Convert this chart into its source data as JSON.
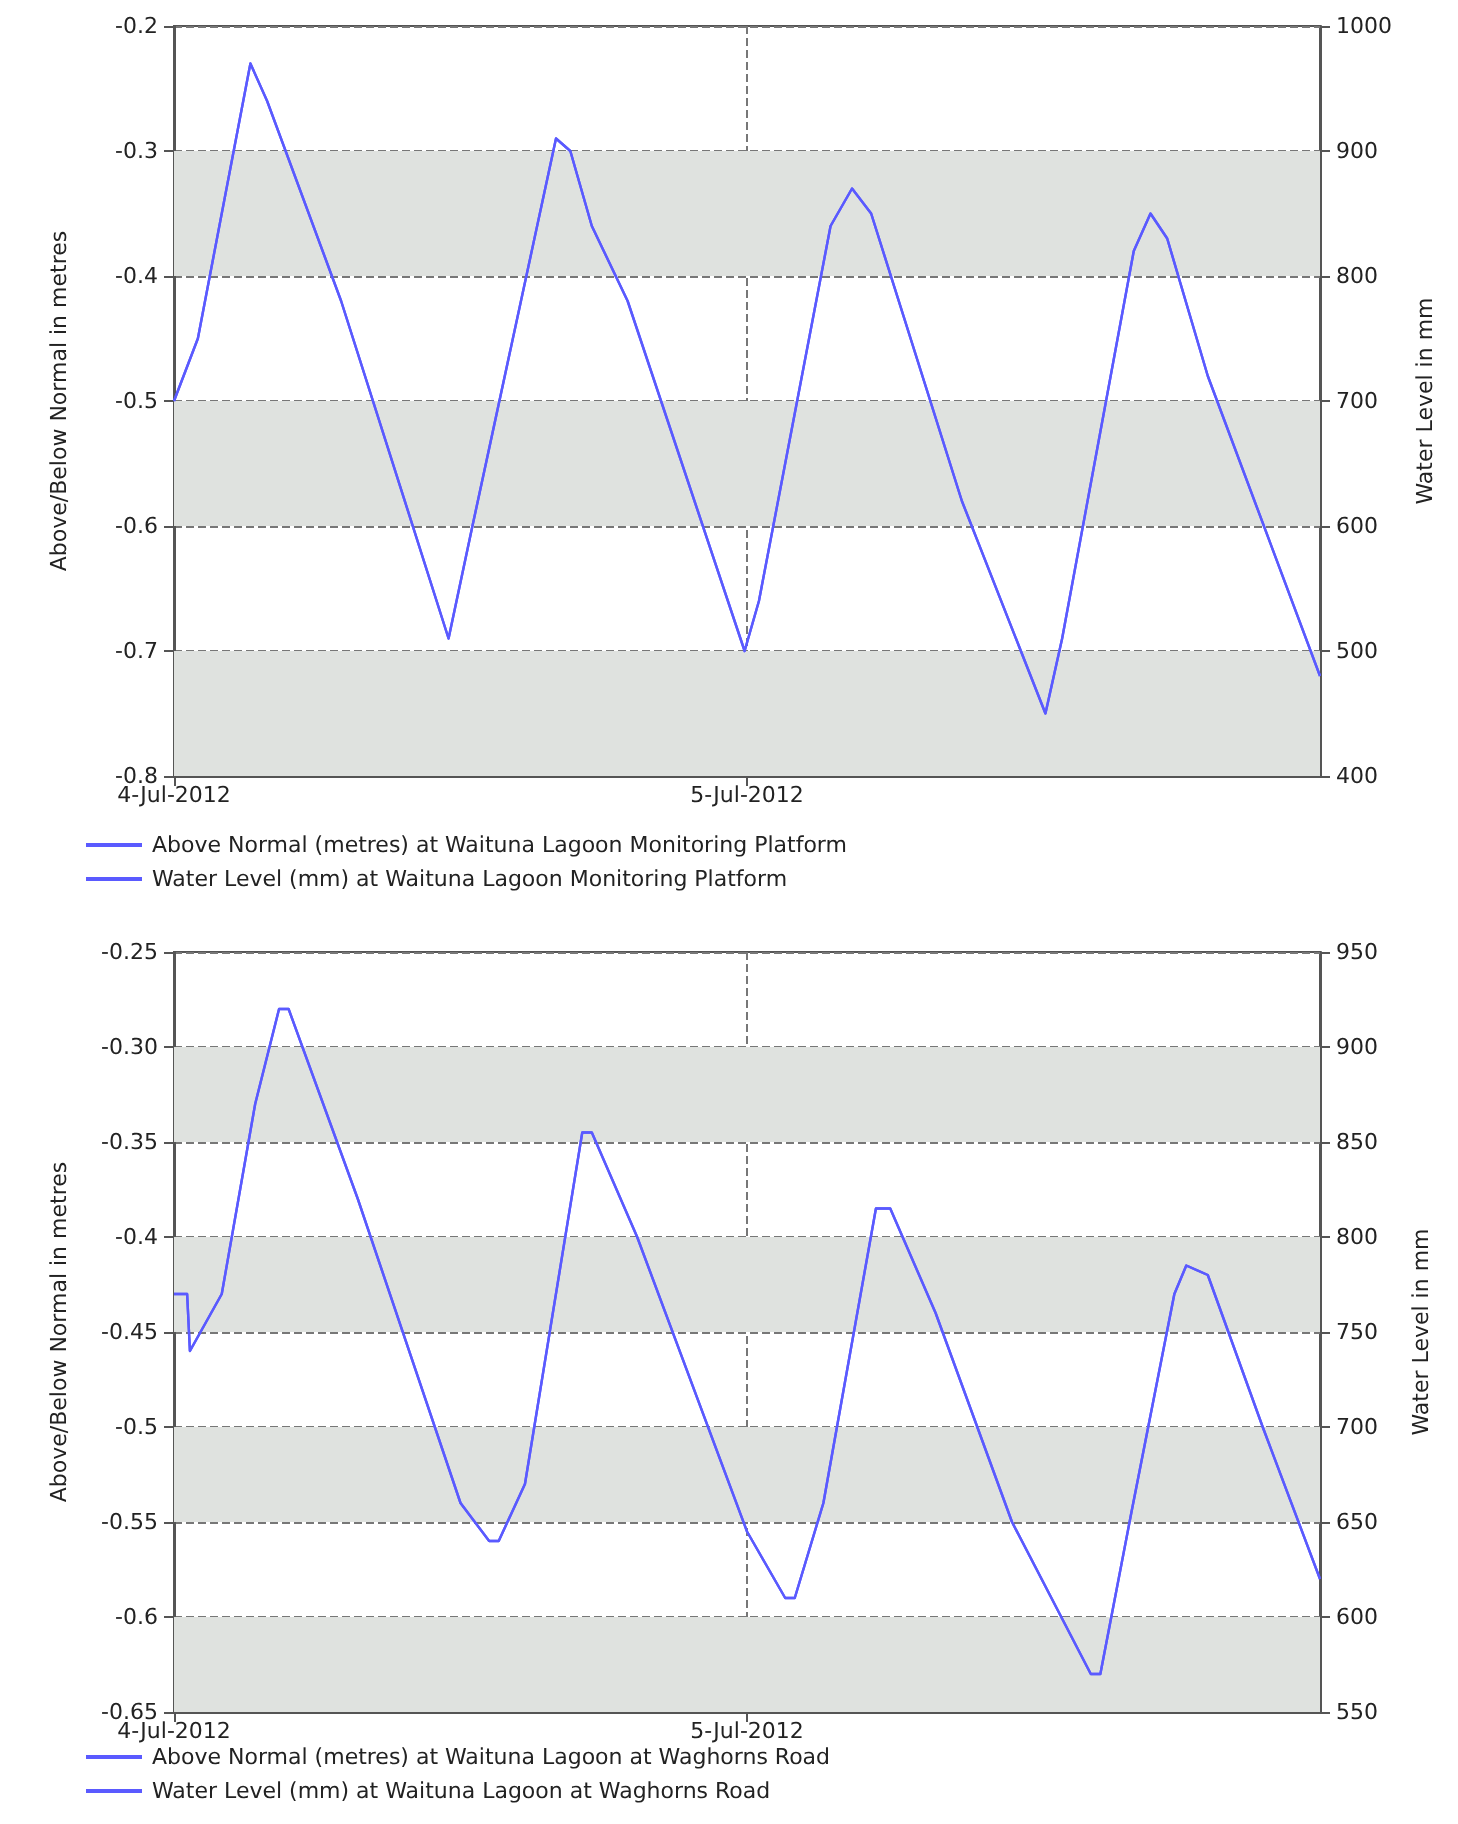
{
  "chart_data": [
    {
      "type": "line",
      "ylabel": "Above/Below Normal in metres",
      "y2label": "Water Level in mm",
      "xlim": [
        "2012-07-04",
        "2012-07-06"
      ],
      "xticks": [
        {
          "value": "2012-07-04",
          "label": "4-Jul-2012"
        },
        {
          "value": "2012-07-05",
          "label": "5-Jul-2012"
        }
      ],
      "ylim": [
        -0.8,
        -0.2
      ],
      "yticks": [
        -0.8,
        -0.7,
        -0.6,
        -0.5,
        -0.4,
        -0.3,
        -0.2
      ],
      "y2lim": [
        400,
        1000
      ],
      "y2ticks": [
        400,
        500,
        600,
        700,
        800,
        900,
        1000
      ],
      "grid": true,
      "legend": "bottom left",
      "marker": "none",
      "line_style": "solid",
      "bands": [
        {
          "axis": "y",
          "from": -0.4,
          "to": -0.3,
          "color": "#dfe2df"
        },
        {
          "axis": "y",
          "from": -0.6,
          "to": -0.5,
          "color": "#dfe2df"
        },
        {
          "axis": "y",
          "from": -0.8,
          "to": -0.7,
          "color": "#dfe2df"
        }
      ],
      "x": [
        "2012-07-04T00:00",
        "2012-07-04T01:00",
        "2012-07-04T03:12",
        "2012-07-04T03:54",
        "2012-07-04T07:00",
        "2012-07-04T11:30",
        "2012-07-04T12:30",
        "2012-07-04T16:00",
        "2012-07-04T16:36",
        "2012-07-04T17:30",
        "2012-07-04T19:00",
        "2012-07-04T23:54",
        "2012-07-05T00:30",
        "2012-07-05T03:30",
        "2012-07-05T04:24",
        "2012-07-05T05:12",
        "2012-07-05T09:00",
        "2012-07-05T12:30",
        "2012-07-05T13:12",
        "2012-07-05T16:12",
        "2012-07-05T16:54",
        "2012-07-05T17:36",
        "2012-07-05T19:18",
        "2012-07-06T00:00"
      ],
      "series": [
        {
          "name": "Above Normal (metres) at Waituna Lagoon Monitoring Platform",
          "color": "#5a5aff",
          "values": [
            -0.5,
            -0.45,
            -0.23,
            -0.26,
            -0.42,
            -0.69,
            -0.6,
            -0.29,
            -0.3,
            -0.36,
            -0.42,
            -0.7,
            -0.66,
            -0.36,
            -0.33,
            -0.35,
            -0.58,
            -0.75,
            -0.69,
            -0.38,
            -0.35,
            -0.37,
            -0.48,
            -0.72
          ]
        },
        {
          "name": "Water Level (mm) at Waituna Lagoon Monitoring Platform",
          "color": "#5a5aff",
          "axis": "y2",
          "values": [
            700,
            750,
            970,
            940,
            780,
            510,
            600,
            910,
            900,
            840,
            780,
            500,
            540,
            840,
            870,
            850,
            620,
            450,
            510,
            820,
            850,
            830,
            720,
            480
          ]
        }
      ]
    },
    {
      "type": "line",
      "ylabel": "Above/Below Normal in metres",
      "y2label": "Water Level in mm",
      "xlim": [
        "2012-07-04",
        "2012-07-06"
      ],
      "xticks": [
        {
          "value": "2012-07-04",
          "label": "4-Jul-2012"
        },
        {
          "value": "2012-07-05",
          "label": "5-Jul-2012"
        }
      ],
      "ylim": [
        -0.65,
        -0.25
      ],
      "yticks": [
        -0.65,
        -0.6,
        -0.55,
        -0.5,
        -0.45,
        -0.4,
        -0.35,
        {
          "value": -0.3,
          "label": "-0.30"
        },
        -0.25
      ],
      "y2lim": [
        550,
        950
      ],
      "y2ticks": [
        550,
        600,
        650,
        700,
        750,
        800,
        850,
        900,
        950
      ],
      "grid": true,
      "legend": "bottom left",
      "marker": "none",
      "line_style": "solid",
      "bands": [
        {
          "axis": "y",
          "from": -0.35,
          "to": -0.3,
          "color": "#dfe2df"
        },
        {
          "axis": "y",
          "from": -0.45,
          "to": -0.4,
          "color": "#dfe2df"
        },
        {
          "axis": "y",
          "from": -0.55,
          "to": -0.5,
          "color": "#dfe2df"
        },
        {
          "axis": "y",
          "from": -0.65,
          "to": -0.6,
          "color": "#dfe2df"
        }
      ],
      "x": [
        "2012-07-04T00:00",
        "2012-07-04T00:33",
        "2012-07-04T00:40",
        "2012-07-04T02:00",
        "2012-07-04T03:24",
        "2012-07-04T04:24",
        "2012-07-04T04:48",
        "2012-07-04T07:42",
        "2012-07-04T12:00",
        "2012-07-04T13:12",
        "2012-07-04T13:36",
        "2012-07-04T14:42",
        "2012-07-04T17:06",
        "2012-07-04T17:30",
        "2012-07-04T19:24",
        "2012-07-05T00:00",
        "2012-07-05T01:36",
        "2012-07-05T02:00",
        "2012-07-05T03:12",
        "2012-07-05T05:24",
        "2012-07-05T06:00",
        "2012-07-05T07:54",
        "2012-07-05T11:06",
        "2012-07-05T14:24",
        "2012-07-05T14:48",
        "2012-07-05T16:06",
        "2012-07-05T17:54",
        "2012-07-05T18:24",
        "2012-07-05T19:18",
        "2012-07-05T21:36",
        "2012-07-06T00:00"
      ],
      "series": [
        {
          "name": "Above Normal (metres) at Waituna Lagoon at Waghorns Road",
          "color": "#5a5aff",
          "values": [
            -0.43,
            -0.43,
            -0.46,
            -0.43,
            -0.33,
            -0.28,
            -0.28,
            -0.38,
            -0.54,
            -0.56,
            -0.56,
            -0.53,
            -0.345,
            -0.345,
            -0.4,
            -0.555,
            -0.59,
            -0.59,
            -0.54,
            -0.385,
            -0.385,
            -0.44,
            -0.55,
            -0.63,
            -0.63,
            -0.545,
            -0.43,
            -0.415,
            -0.42,
            -0.5,
            -0.58
          ]
        },
        {
          "name": "Water Level (mm) at Waituna Lagoon at Waghorns Road",
          "color": "#5a5aff",
          "axis": "y2",
          "values": [
            770,
            770,
            740,
            770,
            870,
            920,
            920,
            820,
            660,
            640,
            640,
            670,
            855,
            855,
            800,
            645,
            610,
            610,
            660,
            815,
            815,
            760,
            650,
            570,
            570,
            655,
            770,
            785,
            780,
            700,
            620
          ]
        }
      ]
    }
  ]
}
